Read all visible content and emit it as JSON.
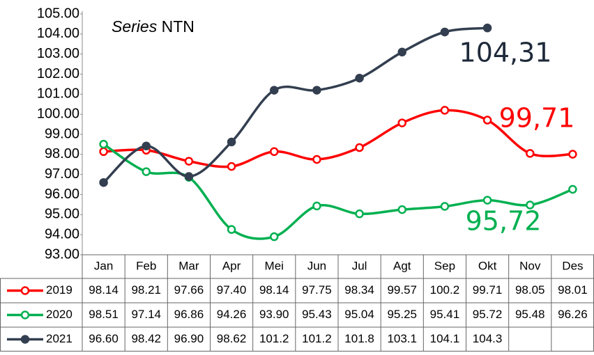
{
  "chart_data": {
    "type": "line",
    "title_parts": [
      "Series",
      "NTN"
    ],
    "categories": [
      "Jan",
      "Feb",
      "Mar",
      "Apr",
      "Mei",
      "Jun",
      "Jul",
      "Agt",
      "Sep",
      "Okt",
      "Nov",
      "Des"
    ],
    "series": [
      {
        "name": "2019",
        "color": "#ff0000",
        "marker_fill": "#ffffff",
        "values": [
          98.14,
          98.21,
          97.66,
          97.4,
          98.14,
          97.75,
          98.34,
          99.57,
          100.2,
          99.71,
          98.05,
          98.01
        ],
        "value_labels": [
          "98.14",
          "98.21",
          "97.66",
          "97.40",
          "98.14",
          "97.75",
          "98.34",
          "99.57",
          "100.2",
          "99.71",
          "98.05",
          "98.01"
        ]
      },
      {
        "name": "2020",
        "color": "#00b050",
        "marker_fill": "#ffffff",
        "values": [
          98.51,
          97.14,
          96.86,
          94.26,
          93.9,
          95.43,
          95.04,
          95.25,
          95.41,
          95.72,
          95.48,
          96.26
        ],
        "value_labels": [
          "98.51",
          "97.14",
          "96.86",
          "94.26",
          "93.90",
          "95.43",
          "95.04",
          "95.25",
          "95.41",
          "95.72",
          "95.48",
          "96.26"
        ]
      },
      {
        "name": "2021",
        "color": "#333f50",
        "marker_fill": "#333f50",
        "values": [
          96.6,
          98.42,
          96.9,
          98.62,
          101.2,
          101.2,
          101.8,
          103.1,
          104.1,
          104.3,
          null,
          null
        ],
        "value_labels": [
          "96.60",
          "98.42",
          "96.90",
          "98.62",
          "101.2",
          "101.2",
          "101.8",
          "103.1",
          "104.1",
          "104.3",
          null,
          null
        ]
      }
    ],
    "annotations": [
      {
        "text": "104,31",
        "color": "#1f2a3a"
      },
      {
        "text": "99,71",
        "color": "#ff0000"
      },
      {
        "text": "95,72",
        "color": "#00b050"
      }
    ],
    "ylim": [
      93,
      105
    ],
    "yticks": [
      {
        "value": 93,
        "label": "93.00"
      },
      {
        "value": 94,
        "label": "94.00"
      },
      {
        "value": 95,
        "label": "95.00"
      },
      {
        "value": 96,
        "label": "96.00"
      },
      {
        "value": 97,
        "label": "97.00"
      },
      {
        "value": 98,
        "label": "98.00"
      },
      {
        "value": 99,
        "label": "99.00"
      },
      {
        "value": 100,
        "label": "100.00"
      },
      {
        "value": 101,
        "label": "101.00"
      },
      {
        "value": 102,
        "label": "102.00"
      },
      {
        "value": 103,
        "label": "103.00"
      },
      {
        "value": 104,
        "label": "104.00"
      },
      {
        "value": 105,
        "label": "105.00"
      }
    ],
    "grid": false
  }
}
